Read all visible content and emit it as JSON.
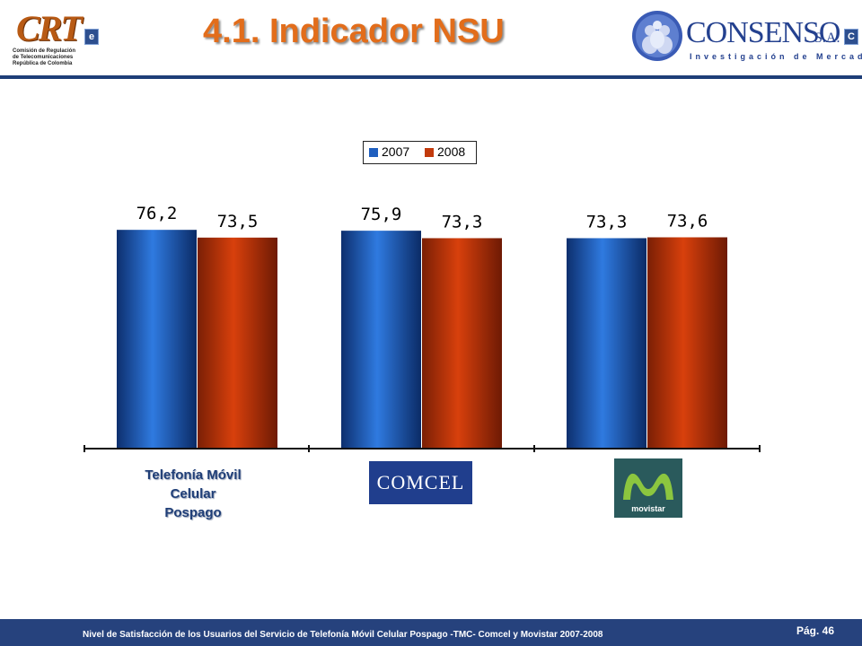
{
  "header": {
    "title": "4.1.  Indicador NSU",
    "crt_logo": {
      "mark": "CRT",
      "badge": "e",
      "lines": [
        "Comisión de Regulación",
        "de Telecomunicaciones",
        "República de Colombia"
      ]
    },
    "consenso_logo": {
      "name": "CONSENSO",
      "suffix": "S.A.",
      "badge": "C",
      "tagline": "Investigación de Mercados"
    }
  },
  "chart_data": {
    "type": "bar",
    "categories": [
      "Telefonía Móvil Celular Pospago",
      "COMCEL",
      "movistar"
    ],
    "series": [
      {
        "name": "2007",
        "color": "#1f5fbf",
        "values": [
          76.2,
          75.9,
          73.3
        ]
      },
      {
        "name": "2008",
        "color": "#c23a0c",
        "values": [
          73.5,
          73.3,
          73.6
        ]
      }
    ],
    "value_labels": [
      [
        "76,2",
        "75,9",
        "73,3"
      ],
      [
        "73,5",
        "73,3",
        "73,6"
      ]
    ],
    "legend_position": "top-center",
    "grid": false,
    "ylim": [
      0,
      100
    ]
  },
  "categories_display": {
    "first_lines": [
      "Telefonía Móvil",
      "Celular",
      "Pospago"
    ],
    "comcel_logo_text": "COMCEL",
    "movistar_logo_text": "movistar"
  },
  "footer": {
    "text": "Nivel de Satisfacción de los Usuarios del Servicio de Telefonía Móvil Celular Pospago -TMC- Comcel y Movistar 2007-2008",
    "page": "Pág. 46"
  }
}
